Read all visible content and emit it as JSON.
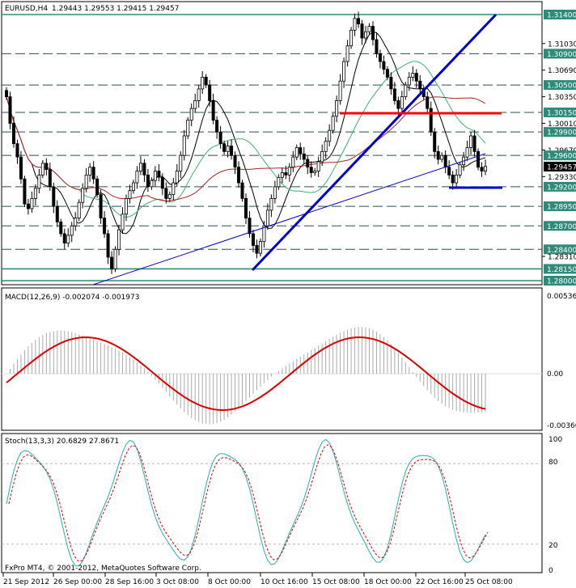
{
  "header": {
    "symbol": "EURUSD,H4",
    "ohlc": "1.29443 1.29553 1.29415 1.29457"
  },
  "macd": {
    "label": "MACD(12,26,9) -0.002074 -0.001973",
    "ticks": [
      "0.00536",
      "0.00",
      "-0.00366"
    ]
  },
  "stoch": {
    "label": "Stoch(13,3,3) 20.6829 27.8671",
    "ticks": [
      "100",
      "80",
      "20",
      "0"
    ]
  },
  "watermark": "FxPro MT4, © 2001-2012, MetaQuotes Software Corp.",
  "colors": {
    "bull": "#000000",
    "bear": "#000000",
    "trend": "#0000cc",
    "resistance": "#ff0000",
    "macd_signal": "#dd0000",
    "stoch_main": "#20b2aa",
    "stoch_signal": "#dd0000"
  },
  "chart_data": {
    "type": "candlestick",
    "symbol": "EURUSD",
    "timeframe": "H4",
    "last_price": "1.29457",
    "price_levels": [
      {
        "label": "1.31400",
        "value": 1.314,
        "style": "highlight"
      },
      {
        "label": "1.31030",
        "value": 1.3103,
        "style": "plain"
      },
      {
        "label": "1.30900",
        "value": 1.309,
        "style": "highlight"
      },
      {
        "label": "1.30690",
        "value": 1.3069,
        "style": "plain"
      },
      {
        "label": "1.30500",
        "value": 1.305,
        "style": "highlight"
      },
      {
        "label": "1.30350",
        "value": 1.3035,
        "style": "plain"
      },
      {
        "label": "1.30150",
        "value": 1.3015,
        "style": "highlight"
      },
      {
        "label": "1.30010",
        "value": 1.3001,
        "style": "plain"
      },
      {
        "label": "1.29900",
        "value": 1.299,
        "style": "highlight"
      },
      {
        "label": "1.29670",
        "value": 1.2967,
        "style": "plain"
      },
      {
        "label": "1.29600",
        "value": 1.296,
        "style": "highlight"
      },
      {
        "label": "1.29330",
        "value": 1.2933,
        "style": "plain"
      },
      {
        "label": "1.29200",
        "value": 1.292,
        "style": "highlight"
      },
      {
        "label": "1.28950",
        "value": 1.2895,
        "style": "highlight"
      },
      {
        "label": "1.28700",
        "value": 1.287,
        "style": "highlight"
      },
      {
        "label": "1.28400",
        "value": 1.284,
        "style": "highlight"
      },
      {
        "label": "1.28310",
        "value": 1.2831,
        "style": "plain"
      },
      {
        "label": "1.28150",
        "value": 1.2815,
        "style": "highlight"
      },
      {
        "label": "1.28000",
        "value": 1.28,
        "style": "highlight"
      }
    ],
    "x_labels": [
      "21 Sep 2012",
      "26 Sep 00:00",
      "28 Sep 16:00",
      "3 Oct 08:00",
      "8 Oct 00:00",
      "10 Oct 16:00",
      "15 Oct 08:00",
      "18 Oct 00:00",
      "22 Oct 16:00",
      "25 Oct 08:00"
    ],
    "closes": [
      1.3035,
      1.3001,
      1.2975,
      1.2958,
      1.293,
      1.2898,
      1.2892,
      1.2905,
      1.2918,
      1.2935,
      1.295,
      1.2942,
      1.292,
      1.2895,
      1.2875,
      1.286,
      1.2848,
      1.2858,
      1.287,
      1.288,
      1.29,
      1.2918,
      1.2935,
      1.2945,
      1.293,
      1.291,
      1.288,
      1.286,
      1.283,
      1.2815,
      1.284,
      1.2865,
      1.2885,
      1.2905,
      1.2915,
      1.2925,
      1.294,
      1.295,
      1.2935,
      1.292,
      1.2928,
      1.294,
      1.2932,
      1.2918,
      1.2905,
      1.291,
      1.2925,
      1.294,
      1.296,
      1.2985,
      1.3005,
      1.302,
      1.303,
      1.3045,
      1.306,
      1.305,
      1.303,
      1.3005,
      1.299,
      1.2975,
      1.2965,
      1.2972,
      1.296,
      1.2945,
      1.2925,
      1.2905,
      1.288,
      1.286,
      1.2845,
      1.2835,
      1.285,
      1.287,
      1.289,
      1.2905,
      1.292,
      1.2932,
      1.2938,
      1.2935,
      1.2945,
      1.2958,
      1.297,
      1.2962,
      1.2955,
      1.2945,
      1.2938,
      1.294,
      1.2952,
      1.2965,
      1.2978,
      1.2992,
      1.301,
      1.303,
      1.3055,
      1.308,
      1.31,
      1.312,
      1.3135,
      1.3128,
      1.311,
      1.3118,
      1.3125,
      1.3108,
      1.309,
      1.308,
      1.307,
      1.306,
      1.3045,
      1.303,
      1.302,
      1.3035,
      1.305,
      1.306,
      1.3065,
      1.3055,
      1.3045,
      1.3035,
      1.302,
      1.299,
      1.2965,
      1.2955,
      1.296,
      1.2945,
      1.2935,
      1.2925,
      1.2935,
      1.2948,
      1.2958,
      1.297,
      1.2985,
      1.2965,
      1.2945,
      1.294,
      1.2946
    ],
    "macd_histogram_range": [
      -0.00366,
      0.00536
    ],
    "stoch_range": [
      0,
      100
    ]
  }
}
